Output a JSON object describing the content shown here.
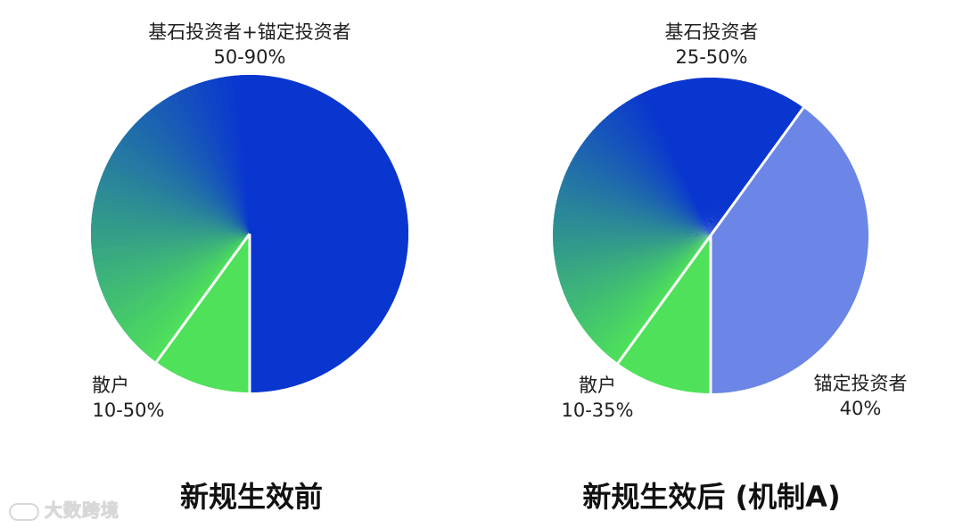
{
  "colors": {
    "deep_blue": "#0a36d0",
    "green": "#4fe15a",
    "light_blue": "#6b86e6",
    "separator": "#ffffff"
  },
  "chart_data": [
    {
      "type": "pie",
      "title": "新规生效前",
      "slices": [
        {
          "label": "基石投资者+锚定投资者",
          "value_text": "50-90%",
          "value": 90,
          "color": "#0a36d0"
        },
        {
          "label": "散户",
          "value_text": "10-50%",
          "value": 10,
          "color": "#4fe15a"
        }
      ]
    },
    {
      "type": "pie",
      "title": "新规生效后 (机制A)",
      "slices": [
        {
          "label": "基石投资者",
          "value_text": "25-50%",
          "value": 50,
          "color": "#0a36d0"
        },
        {
          "label": "锚定投资者",
          "value_text": "40%",
          "value": 40,
          "color": "#6b86e6"
        },
        {
          "label": "散户",
          "value_text": "10-35%",
          "value": 10,
          "color": "#4fe15a"
        }
      ]
    }
  ],
  "watermark": {
    "text": "大数跨境",
    "icon": "chat-bubble-icon"
  }
}
